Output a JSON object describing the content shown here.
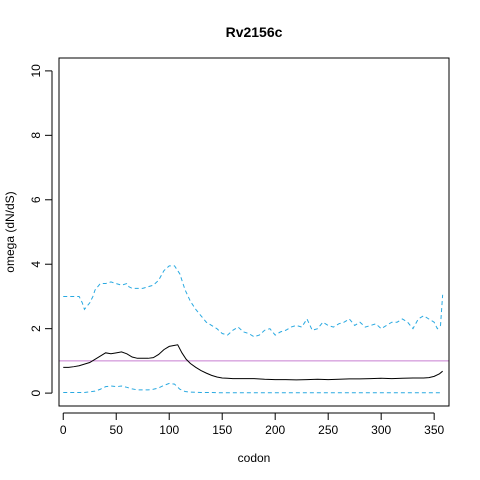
{
  "chart_data": {
    "type": "line",
    "title": "Rv2156c",
    "xlabel": "codon",
    "ylabel": "omega (dN/dS)",
    "xlim": [
      -4,
      364
    ],
    "ylim": [
      -0.4,
      10.4
    ],
    "xticks": [
      0,
      50,
      100,
      150,
      200,
      250,
      300,
      350
    ],
    "yticks": [
      0,
      2,
      4,
      6,
      8,
      10
    ],
    "reference_line": {
      "y": 1,
      "color": "#c77dd1"
    },
    "series": [
      {
        "style": "solid",
        "color": "#000000",
        "x": [
          0,
          5,
          10,
          15,
          20,
          25,
          30,
          35,
          40,
          45,
          50,
          55,
          60,
          65,
          70,
          75,
          80,
          85,
          90,
          95,
          100,
          105,
          108,
          112,
          116,
          120,
          125,
          130,
          135,
          140,
          145,
          150,
          155,
          160,
          170,
          180,
          190,
          200,
          210,
          220,
          230,
          240,
          250,
          260,
          270,
          280,
          290,
          300,
          310,
          320,
          330,
          340,
          345,
          350,
          355,
          358
        ],
        "y": [
          0.8,
          0.8,
          0.82,
          0.85,
          0.9,
          0.95,
          1.05,
          1.15,
          1.25,
          1.22,
          1.25,
          1.28,
          1.22,
          1.12,
          1.08,
          1.08,
          1.08,
          1.1,
          1.2,
          1.35,
          1.45,
          1.48,
          1.5,
          1.25,
          1.05,
          0.92,
          0.8,
          0.7,
          0.62,
          0.55,
          0.5,
          0.47,
          0.46,
          0.45,
          0.45,
          0.45,
          0.43,
          0.42,
          0.42,
          0.41,
          0.42,
          0.43,
          0.42,
          0.43,
          0.44,
          0.44,
          0.45,
          0.46,
          0.45,
          0.46,
          0.47,
          0.47,
          0.48,
          0.52,
          0.6,
          0.68
        ]
      },
      {
        "style": "dashed",
        "color": "#29a9e1",
        "x": [
          0,
          5,
          10,
          15,
          18,
          20,
          25,
          28,
          30,
          35,
          40,
          45,
          50,
          55,
          60,
          62,
          65,
          70,
          75,
          80,
          85,
          90,
          95,
          100,
          105,
          110,
          115,
          120,
          125,
          130,
          135,
          140,
          145,
          150,
          155,
          160,
          165,
          170,
          175,
          180,
          185,
          190,
          195,
          200,
          205,
          210,
          215,
          220,
          225,
          230,
          235,
          240,
          245,
          250,
          255,
          260,
          265,
          270,
          275,
          280,
          285,
          290,
          295,
          300,
          305,
          310,
          315,
          320,
          325,
          330,
          335,
          340,
          345,
          350,
          353,
          356,
          358
        ],
        "y": [
          3.0,
          3.0,
          3.0,
          3.0,
          2.8,
          2.6,
          2.8,
          3.0,
          3.2,
          3.4,
          3.4,
          3.45,
          3.4,
          3.35,
          3.4,
          3.3,
          3.25,
          3.25,
          3.25,
          3.3,
          3.35,
          3.5,
          3.8,
          3.95,
          3.95,
          3.7,
          3.2,
          2.85,
          2.6,
          2.4,
          2.2,
          2.1,
          2.0,
          1.85,
          1.8,
          1.95,
          2.05,
          1.9,
          1.85,
          1.75,
          1.8,
          1.95,
          2.0,
          1.8,
          1.9,
          1.95,
          2.05,
          2.1,
          2.05,
          2.3,
          1.95,
          2.0,
          2.2,
          2.1,
          2.05,
          2.15,
          2.2,
          2.3,
          2.1,
          2.2,
          2.05,
          2.1,
          2.15,
          2.0,
          2.1,
          2.2,
          2.2,
          2.3,
          2.2,
          2.0,
          2.3,
          2.4,
          2.3,
          2.2,
          2.0,
          2.1,
          3.05
        ]
      },
      {
        "style": "dashed",
        "color": "#29a9e1",
        "x": [
          0,
          10,
          20,
          30,
          35,
          40,
          45,
          50,
          55,
          60,
          65,
          70,
          75,
          80,
          85,
          90,
          95,
          100,
          105,
          110,
          115,
          120,
          130,
          140,
          150,
          200,
          250,
          300,
          350,
          358
        ],
        "y": [
          0.02,
          0.02,
          0.02,
          0.06,
          0.12,
          0.2,
          0.22,
          0.2,
          0.22,
          0.18,
          0.13,
          0.1,
          0.1,
          0.1,
          0.12,
          0.16,
          0.24,
          0.3,
          0.28,
          0.12,
          0.05,
          0.03,
          0.02,
          0.02,
          0.01,
          0.01,
          0.01,
          0.01,
          0.01,
          0.01
        ]
      }
    ]
  }
}
